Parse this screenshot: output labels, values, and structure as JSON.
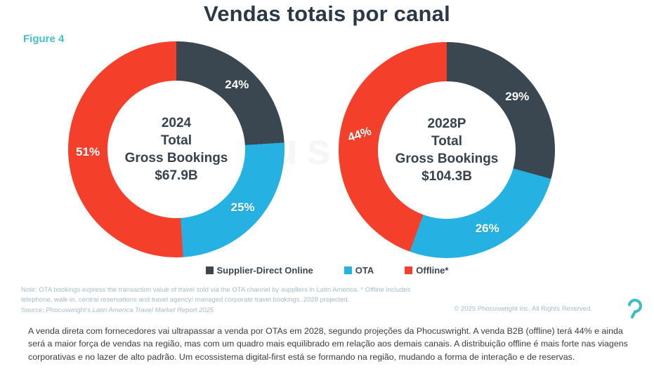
{
  "figure_label": "Figure 4",
  "title": "Vendas totais por canal",
  "watermark": "phocuswright",
  "colors": {
    "supplier_direct": "#3a4750",
    "ota": "#25b2e2",
    "offline": "#f4402a",
    "teal_accent": "#45bfc9",
    "title_text": "#2b3947",
    "note_text": "#a5bdca"
  },
  "chart_data": [
    {
      "type": "pie",
      "subtype": "donut",
      "title": "2024 Total Gross Bookings",
      "total_value": "$67.9B",
      "center_label": {
        "period": "2024",
        "line2": "Total",
        "line3": "Gross Bookings",
        "value": "$67.9B"
      },
      "start_angle_deg": 0,
      "direction": "clockwise",
      "segments": [
        {
          "name": "Supplier-Direct Online",
          "value": 24,
          "label": "24%",
          "color": "#3a4750"
        },
        {
          "name": "OTA",
          "value": 25,
          "label": "25%",
          "color": "#25b2e2"
        },
        {
          "name": "Offline",
          "value": 51,
          "label": "51%",
          "color": "#f4402a"
        }
      ]
    },
    {
      "type": "pie",
      "subtype": "donut",
      "title": "2028P Total Gross Bookings",
      "total_value": "$104.3B",
      "center_label": {
        "period": "2028P",
        "line2": "Total",
        "line3": "Gross Bookings",
        "value": "$104.3B"
      },
      "start_angle_deg": 0,
      "direction": "clockwise",
      "segments": [
        {
          "name": "Supplier-Direct Online",
          "value": 29,
          "label": "29%",
          "color": "#3a4750"
        },
        {
          "name": "OTA",
          "value": 26,
          "label": "26%",
          "color": "#25b2e2"
        },
        {
          "name": "Offline",
          "value": 44,
          "label": "44%",
          "color": "#f4402a",
          "label_rotation": -18
        }
      ]
    }
  ],
  "legend": {
    "items": [
      {
        "label": "Supplier-Direct Online",
        "color": "#3a4750"
      },
      {
        "label": "OTA",
        "color": "#25b2e2"
      },
      {
        "label": "Offline*",
        "color": "#f4402a"
      }
    ]
  },
  "footnote": {
    "line1": "Note: OTA bookings express the transaction value of travel sold via the OTA channel by suppliers in Latin America. *  Offline includes",
    "line2": "telephone, walk-in, central reservations and  travel agency/ managed corporate travel bookings. 2028 projected.",
    "source_prefix": "Source: Phocuswright's ",
    "source_title": "Latin America Travel Market Report 2025"
  },
  "copyright": "© 2025 Phocuswright Inc. All Rights Reserved.",
  "logo_name": "phocuswright-mark",
  "summary_paragraph": "A venda direta com fornecedores vai ultrapassar a venda por OTAs em 2028, segundo projeções da Phocuswright. A venda B2B (offline) terá 44% e ainda será a maior força de vendas na região, mas com um quadro mais equilibrado em relação aos demais canais. A distribuição offline é mais forte nas viagens corporativas e no lazer de alto padrão. Um ecossistema digital-first está se formando na região, mudando a forma de interação e de reservas."
}
